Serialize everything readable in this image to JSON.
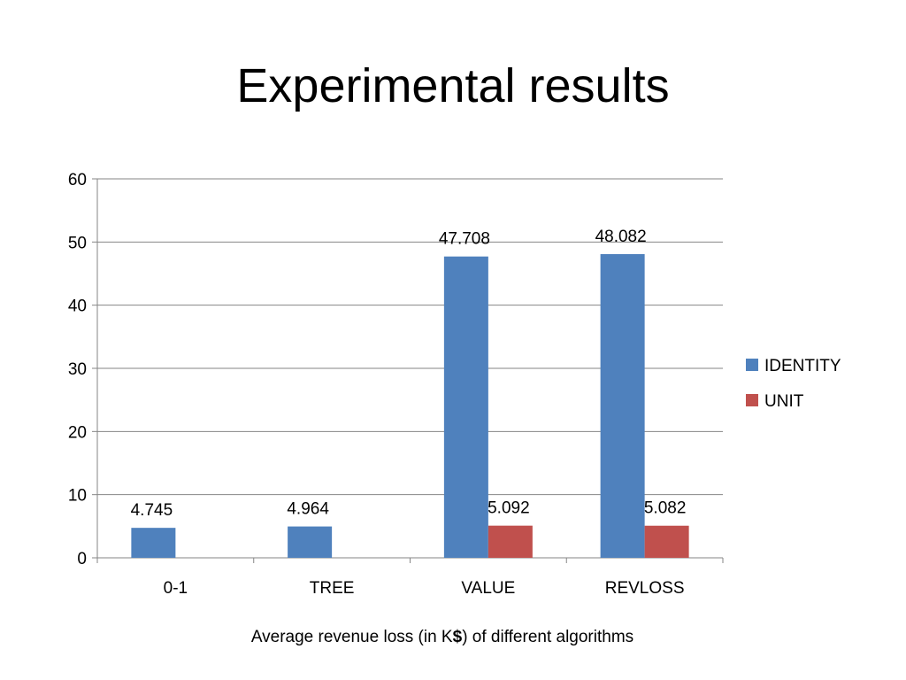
{
  "slide": {
    "title": "Experimental results"
  },
  "caption": {
    "before": "Average revenue loss (in K",
    "bold": "$",
    "after": ") of different algorithms"
  },
  "colors": {
    "identity": "#4f81bd",
    "unit": "#c0504d",
    "grid": "#868686"
  },
  "chart_data": {
    "type": "bar",
    "categories": [
      "0-1",
      "TREE",
      "VALUE",
      "REVLOSS"
    ],
    "series": [
      {
        "name": "IDENTITY",
        "values": [
          4.745,
          4.964,
          47.708,
          48.082
        ],
        "labels": [
          "4.745",
          "4.964",
          "47.708",
          "48.082"
        ]
      },
      {
        "name": "UNIT",
        "values": [
          null,
          null,
          5.092,
          5.082
        ],
        "labels": [
          "",
          "",
          "5.092",
          "5.082"
        ]
      }
    ],
    "ylim": [
      0,
      60
    ],
    "yticks": [
      0,
      10,
      20,
      30,
      40,
      50,
      60
    ],
    "grid": true,
    "legend": "right",
    "xlabel": "",
    "ylabel": ""
  }
}
